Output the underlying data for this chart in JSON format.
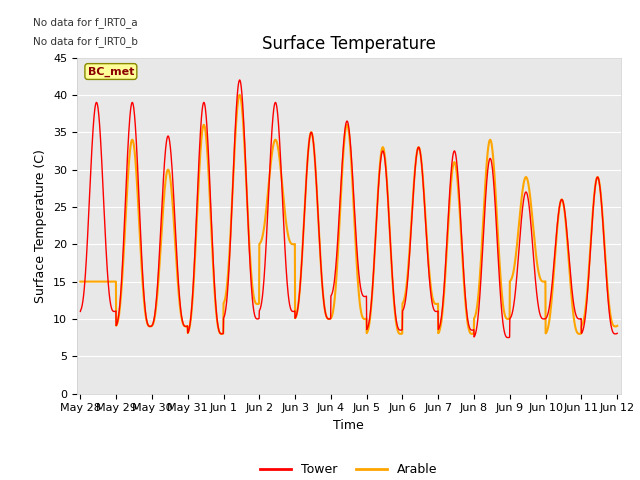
{
  "title": "Surface Temperature",
  "xlabel": "Time",
  "ylabel": "Surface Temperature (C)",
  "note_lines": [
    "No data for f_IRT0_a",
    "No data for f_IRT0_b"
  ],
  "bc_met_label": "BC_met",
  "legend_entries": [
    "Tower",
    "Arable"
  ],
  "tower_color": "#ff0000",
  "arable_color": "#ffa500",
  "bg_color": "#e8e8e8",
  "ylim": [
    0,
    45
  ],
  "yticks": [
    0,
    5,
    10,
    15,
    20,
    25,
    30,
    35,
    40,
    45
  ],
  "x_tick_labels": [
    "May 28",
    "May 29",
    "May 30",
    "May 31",
    "Jun 1",
    "Jun 2",
    "Jun 3",
    "Jun 4",
    "Jun 5",
    "Jun 6",
    "Jun 7",
    "Jun 8",
    "Jun 9",
    "Jun 10",
    "Jun 11",
    "Jun 12"
  ],
  "x_tick_positions": [
    0,
    1,
    2,
    3,
    4,
    5,
    6,
    7,
    8,
    9,
    10,
    11,
    12,
    13,
    14,
    15
  ],
  "xlim": [
    -0.1,
    15.1
  ],
  "figsize": [
    6.4,
    4.8
  ],
  "dpi": 100,
  "tower_peaks": [
    39,
    39,
    34.5,
    39,
    42,
    39,
    35,
    36.5,
    32.5,
    33,
    32.5,
    31.5,
    27,
    26,
    29,
    29
  ],
  "tower_mins": [
    11,
    9,
    9,
    8,
    10,
    11,
    10,
    13,
    8.5,
    11,
    8.5,
    7.5,
    10,
    10,
    8,
    11
  ],
  "arable_peaks": [
    15,
    34,
    30,
    36,
    40,
    34,
    35,
    36,
    33,
    33,
    31,
    34,
    29,
    26,
    29,
    29
  ],
  "arable_mins": [
    15,
    9,
    9,
    8,
    12,
    20,
    10,
    10,
    8,
    12,
    8,
    10,
    15,
    8,
    9,
    15
  ],
  "arable_start": 15,
  "tower_start": 11,
  "peak_phase": 0.45,
  "title_fontsize": 12,
  "label_fontsize": 9,
  "tick_fontsize": 8
}
